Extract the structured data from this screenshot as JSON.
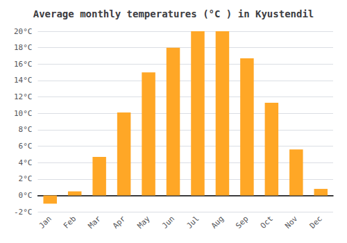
{
  "chart_data": {
    "type": "bar",
    "title": "Average monthly temperatures (°C ) in Kyustendil",
    "categories": [
      "Jan",
      "Feb",
      "Mar",
      "Apr",
      "May",
      "Jun",
      "Jul",
      "Aug",
      "Sep",
      "Oct",
      "Nov",
      "Dec"
    ],
    "values": [
      -1.0,
      0.5,
      4.7,
      10.1,
      15.0,
      18.0,
      20.0,
      20.0,
      16.7,
      11.3,
      5.6,
      0.8
    ],
    "color": "#FFA726",
    "ylim": [
      -2,
      20
    ],
    "yticks": [
      {
        "value": -2,
        "label": "-2°C"
      },
      {
        "value": 0,
        "label": "0°C"
      },
      {
        "value": 2,
        "label": "2°C"
      },
      {
        "value": 4,
        "label": "4°C"
      },
      {
        "value": 6,
        "label": "6°C"
      },
      {
        "value": 8,
        "label": "8°C"
      },
      {
        "value": 10,
        "label": "10°C"
      },
      {
        "value": 12,
        "label": "12°C"
      },
      {
        "value": 14,
        "label": "14°C"
      },
      {
        "value": 16,
        "label": "16°C"
      },
      {
        "value": 18,
        "label": "18°C"
      },
      {
        "value": 20,
        "label": "20°C"
      }
    ],
    "grid": true
  }
}
